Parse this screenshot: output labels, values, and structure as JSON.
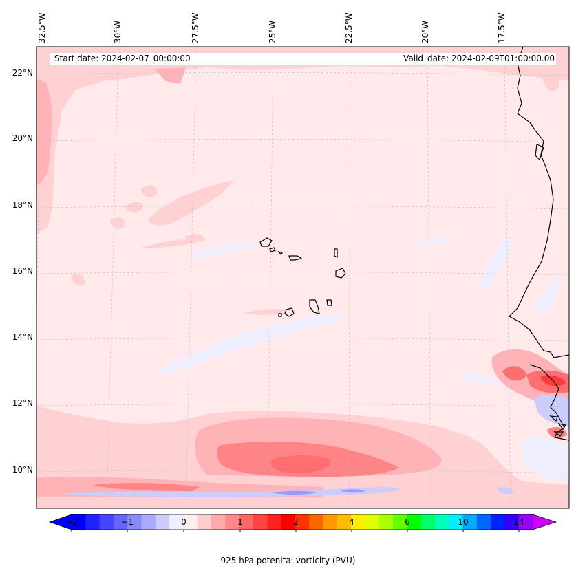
{
  "map": {
    "region": "Eastern tropical North Atlantic / Cape Verde",
    "longitude_labels": [
      "32.5°W",
      "30°W",
      "27.5°W",
      "25°W",
      "22.5°W",
      "20°W",
      "17.5°W"
    ],
    "latitude_labels": [
      "22°N",
      "20°N",
      "18°N",
      "16°N",
      "14°N",
      "12°N",
      "10°N"
    ],
    "field": "925 hPa potential vorticity",
    "colors": {
      "background_field": "#ffe9ea",
      "light_pink": "#ffd1d3",
      "medium_pink": "#ffb3b6",
      "red": "#ff6f72",
      "deep_red": "#ff3b3e",
      "light_blue": "#eeeeff",
      "blue": "#b5b5ff",
      "coast": "#000000"
    }
  },
  "header": {
    "start_date": "Start date: 2024-02-07_00:00:00",
    "valid_date": "Valid_date: 2024-02-09T01:00:00.00"
  },
  "colorbar": {
    "label": "925 hPa potenital vorticity (PVU)",
    "tick_labels": [
      "−2",
      "−1",
      "0",
      "1",
      "2",
      "4",
      "6",
      "10",
      "14"
    ],
    "colors": [
      "#0000ff",
      "#2222ff",
      "#4444ff",
      "#6666ff",
      "#8888ff",
      "#aaaaff",
      "#ccccff",
      "#eeeeff",
      "#ffeeee",
      "#ffcccc",
      "#ffaaaa",
      "#ff8888",
      "#ff6666",
      "#ff4444",
      "#ff2222",
      "#ff0000",
      "#ff3300",
      "#ff6600",
      "#ff9900",
      "#ffbb00",
      "#ffee00",
      "#ddff00",
      "#aaff00",
      "#66ff00",
      "#00ff00",
      "#00ff66",
      "#00ffbb",
      "#00eeff",
      "#00aaff",
      "#0066ff",
      "#0022ff",
      "#3300ff",
      "#9900ff"
    ],
    "under_color": "#0000ff",
    "over_color": "#cc00ff"
  }
}
